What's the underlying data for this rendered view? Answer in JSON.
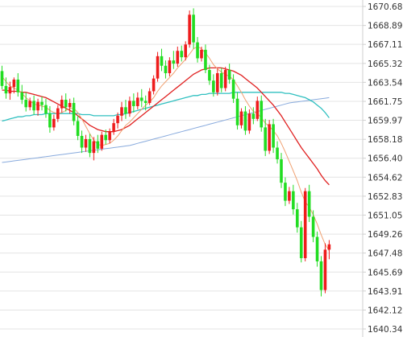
{
  "chart_data": {
    "type": "candlestick",
    "title": "",
    "xlabel": "",
    "ylabel": "",
    "ylim": [
      1640.34,
      1670.68
    ],
    "grid": true,
    "legend": "none",
    "y_ticks": [
      "1670.68",
      "1668.89",
      "1667.11",
      "1665.32",
      "1663.54",
      "1661.75",
      "1659.97",
      "1658.18",
      "1656.40",
      "1654.62",
      "1652.83",
      "1651.05",
      "1649.26",
      "1647.48",
      "1645.69",
      "1643.91",
      "1642.12",
      "1640.34"
    ],
    "colors": {
      "up": "#ee1c1c",
      "down": "#22dd22",
      "ma_fast": "#f0a070",
      "ma_mid": "#e02020",
      "ma_slow": "#30c0c0",
      "ma_long": "#88aadd"
    },
    "ohlc": [
      [
        1664.6,
        1665.1,
        1662.9,
        1663.2
      ],
      [
        1663.2,
        1664.0,
        1662.0,
        1662.5
      ],
      [
        1662.5,
        1663.6,
        1661.9,
        1663.1
      ],
      [
        1663.1,
        1664.0,
        1662.5,
        1663.8
      ],
      [
        1663.8,
        1664.4,
        1662.2,
        1662.6
      ],
      [
        1662.6,
        1663.3,
        1661.5,
        1661.9
      ],
      [
        1661.9,
        1662.6,
        1660.8,
        1661.2
      ],
      [
        1661.2,
        1662.1,
        1660.9,
        1661.8
      ],
      [
        1661.8,
        1662.3,
        1660.5,
        1660.9
      ],
      [
        1660.9,
        1662.0,
        1660.4,
        1661.7
      ],
      [
        1661.7,
        1662.2,
        1660.9,
        1661.4
      ],
      [
        1661.4,
        1662.0,
        1660.2,
        1660.6
      ],
      [
        1660.6,
        1661.3,
        1658.8,
        1659.3
      ],
      [
        1659.3,
        1660.5,
        1659.0,
        1660.1
      ],
      [
        1660.1,
        1661.4,
        1659.8,
        1661.1
      ],
      [
        1661.1,
        1662.3,
        1660.7,
        1661.9
      ],
      [
        1661.9,
        1662.5,
        1660.8,
        1661.2
      ],
      [
        1661.2,
        1662.0,
        1660.6,
        1661.6
      ],
      [
        1661.6,
        1662.1,
        1659.5,
        1659.9
      ],
      [
        1659.9,
        1660.4,
        1658.1,
        1658.5
      ],
      [
        1658.5,
        1659.0,
        1656.9,
        1657.4
      ],
      [
        1657.4,
        1658.6,
        1657.0,
        1658.2
      ],
      [
        1658.2,
        1658.7,
        1656.5,
        1656.9
      ],
      [
        1656.9,
        1658.4,
        1656.2,
        1658.0
      ],
      [
        1658.0,
        1658.6,
        1656.9,
        1657.3
      ],
      [
        1657.3,
        1658.9,
        1657.1,
        1658.6
      ],
      [
        1658.6,
        1659.1,
        1657.7,
        1658.1
      ],
      [
        1658.1,
        1659.2,
        1657.8,
        1658.9
      ],
      [
        1658.9,
        1660.1,
        1658.6,
        1659.7
      ],
      [
        1659.7,
        1660.7,
        1659.2,
        1660.4
      ],
      [
        1660.4,
        1661.7,
        1659.9,
        1661.2
      ],
      [
        1661.2,
        1661.9,
        1660.1,
        1660.6
      ],
      [
        1660.6,
        1662.2,
        1660.3,
        1661.8
      ],
      [
        1661.8,
        1662.5,
        1660.7,
        1661.3
      ],
      [
        1661.3,
        1662.6,
        1661.0,
        1662.1
      ],
      [
        1662.1,
        1662.9,
        1661.2,
        1661.8
      ],
      [
        1661.8,
        1662.3,
        1660.9,
        1661.6
      ],
      [
        1661.6,
        1663.0,
        1661.4,
        1662.7
      ],
      [
        1662.7,
        1664.2,
        1662.4,
        1663.9
      ],
      [
        1663.9,
        1666.4,
        1663.6,
        1666.0
      ],
      [
        1666.0,
        1666.7,
        1664.6,
        1665.1
      ],
      [
        1665.1,
        1665.6,
        1663.9,
        1664.4
      ],
      [
        1664.4,
        1665.9,
        1664.1,
        1665.6
      ],
      [
        1665.6,
        1666.5,
        1664.8,
        1665.3
      ],
      [
        1665.3,
        1666.9,
        1665.0,
        1666.5
      ],
      [
        1666.5,
        1667.0,
        1665.5,
        1665.9
      ],
      [
        1665.9,
        1667.4,
        1665.6,
        1667.1
      ],
      [
        1667.1,
        1670.3,
        1666.8,
        1669.9
      ],
      [
        1669.9,
        1670.5,
        1666.7,
        1667.3
      ],
      [
        1667.3,
        1667.8,
        1665.4,
        1665.8
      ],
      [
        1665.8,
        1666.9,
        1665.5,
        1666.6
      ],
      [
        1666.6,
        1667.1,
        1664.4,
        1664.7
      ],
      [
        1664.7,
        1665.2,
        1663.3,
        1663.7
      ],
      [
        1663.7,
        1664.3,
        1662.2,
        1662.6
      ],
      [
        1662.6,
        1664.8,
        1662.3,
        1664.4
      ],
      [
        1664.4,
        1664.9,
        1662.6,
        1663.0
      ],
      [
        1663.0,
        1665.0,
        1662.7,
        1664.7
      ],
      [
        1664.7,
        1665.3,
        1663.4,
        1663.8
      ],
      [
        1663.8,
        1664.3,
        1661.6,
        1662.0
      ],
      [
        1662.0,
        1662.6,
        1659.1,
        1659.5
      ],
      [
        1659.5,
        1661.1,
        1659.2,
        1660.8
      ],
      [
        1660.8,
        1661.3,
        1658.6,
        1659.0
      ],
      [
        1659.0,
        1661.0,
        1658.7,
        1660.6
      ],
      [
        1660.6,
        1661.2,
        1659.6,
        1660.1
      ],
      [
        1660.1,
        1662.2,
        1659.9,
        1661.8
      ],
      [
        1661.8,
        1662.3,
        1658.9,
        1659.3
      ],
      [
        1659.3,
        1660.1,
        1656.6,
        1657.1
      ],
      [
        1657.1,
        1660.0,
        1656.8,
        1659.6
      ],
      [
        1659.6,
        1660.1,
        1656.9,
        1657.4
      ],
      [
        1657.4,
        1658.0,
        1655.9,
        1656.3
      ],
      [
        1656.3,
        1656.9,
        1653.6,
        1654.1
      ],
      [
        1654.1,
        1654.6,
        1651.9,
        1652.4
      ],
      [
        1652.4,
        1653.7,
        1652.1,
        1653.3
      ],
      [
        1653.3,
        1653.9,
        1651.1,
        1651.6
      ],
      [
        1651.6,
        1652.2,
        1649.4,
        1649.9
      ],
      [
        1649.9,
        1650.5,
        1646.6,
        1647.0
      ],
      [
        1647.0,
        1653.6,
        1646.7,
        1653.3
      ],
      [
        1653.3,
        1653.9,
        1650.4,
        1650.9
      ],
      [
        1650.9,
        1651.5,
        1648.5,
        1649.0
      ],
      [
        1649.0,
        1649.5,
        1646.2,
        1646.7
      ],
      [
        1646.7,
        1647.2,
        1643.4,
        1644.0
      ],
      [
        1644.0,
        1648.4,
        1643.7,
        1647.8
      ],
      [
        1647.8,
        1648.7,
        1646.9,
        1648.3
      ]
    ],
    "ma_fast": [
      1664.1,
      1663.6,
      1663.2,
      1663.0,
      1662.8,
      1662.5,
      1662.1,
      1661.8,
      1661.5,
      1661.4,
      1661.3,
      1661.2,
      1660.9,
      1660.7,
      1660.6,
      1660.7,
      1660.9,
      1661.1,
      1661.1,
      1660.7,
      1660.1,
      1659.4,
      1658.7,
      1658.1,
      1657.7,
      1657.6,
      1657.7,
      1657.8,
      1658.1,
      1658.5,
      1659.0,
      1659.5,
      1659.8,
      1660.2,
      1660.6,
      1661.0,
      1661.4,
      1661.7,
      1662.1,
      1662.7,
      1663.2,
      1663.6,
      1664.0,
      1664.4,
      1664.9,
      1665.3,
      1665.7,
      1666.2,
      1666.7,
      1666.9,
      1666.7,
      1666.3,
      1665.8,
      1665.2,
      1664.8,
      1664.5,
      1664.3,
      1664.1,
      1663.8,
      1663.2,
      1662.6,
      1661.9,
      1661.3,
      1660.8,
      1660.6,
      1660.2,
      1659.7,
      1659.4,
      1659.0,
      1658.5,
      1657.8,
      1657.0,
      1656.1,
      1655.2,
      1654.3,
      1653.2,
      1652.3,
      1651.8,
      1651.1,
      1650.2,
      1649.2,
      1648.3,
      1647.7
    ],
    "ma_mid": [
      1662.8,
      1662.8,
      1662.7,
      1662.7,
      1662.7,
      1662.6,
      1662.6,
      1662.5,
      1662.4,
      1662.3,
      1662.2,
      1662.1,
      1661.9,
      1661.7,
      1661.5,
      1661.3,
      1661.1,
      1660.9,
      1660.7,
      1660.4,
      1660.1,
      1659.8,
      1659.5,
      1659.3,
      1659.1,
      1659.0,
      1658.9,
      1658.9,
      1658.9,
      1659.0,
      1659.1,
      1659.3,
      1659.5,
      1659.8,
      1660.1,
      1660.4,
      1660.7,
      1661.0,
      1661.3,
      1661.6,
      1661.9,
      1662.2,
      1662.5,
      1662.8,
      1663.1,
      1663.4,
      1663.7,
      1664.0,
      1664.3,
      1664.5,
      1664.7,
      1664.8,
      1664.9,
      1664.9,
      1664.9,
      1664.9,
      1664.8,
      1664.7,
      1664.6,
      1664.4,
      1664.2,
      1663.9,
      1663.6,
      1663.3,
      1663.0,
      1662.6,
      1662.2,
      1661.8,
      1661.4,
      1660.9,
      1660.4,
      1659.8,
      1659.2,
      1658.6,
      1658.0,
      1657.4,
      1656.9,
      1656.4,
      1655.9,
      1655.4,
      1654.8,
      1654.3,
      1653.9
    ],
    "ma_slow": [
      1659.9,
      1660.0,
      1660.1,
      1660.2,
      1660.3,
      1660.3,
      1660.4,
      1660.4,
      1660.5,
      1660.5,
      1660.5,
      1660.6,
      1660.6,
      1660.6,
      1660.6,
      1660.6,
      1660.6,
      1660.6,
      1660.6,
      1660.6,
      1660.5,
      1660.5,
      1660.5,
      1660.4,
      1660.4,
      1660.4,
      1660.4,
      1660.4,
      1660.4,
      1660.5,
      1660.5,
      1660.6,
      1660.7,
      1660.8,
      1660.9,
      1661.0,
      1661.1,
      1661.2,
      1661.3,
      1661.4,
      1661.5,
      1661.6,
      1661.7,
      1661.8,
      1661.9,
      1662.0,
      1662.1,
      1662.2,
      1662.3,
      1662.3,
      1662.4,
      1662.4,
      1662.5,
      1662.5,
      1662.5,
      1662.5,
      1662.5,
      1662.5,
      1662.6,
      1662.6,
      1662.6,
      1662.6,
      1662.6,
      1662.6,
      1662.6,
      1662.6,
      1662.6,
      1662.6,
      1662.6,
      1662.6,
      1662.6,
      1662.5,
      1662.5,
      1662.4,
      1662.3,
      1662.2,
      1662.1,
      1661.9,
      1661.7,
      1661.4,
      1661.1,
      1660.7,
      1660.2
    ],
    "ma_long": [
      1656.0,
      1656.05,
      1656.1,
      1656.15,
      1656.2,
      1656.25,
      1656.3,
      1656.35,
      1656.4,
      1656.45,
      1656.5,
      1656.55,
      1656.6,
      1656.65,
      1656.7,
      1656.75,
      1656.8,
      1656.85,
      1656.9,
      1656.95,
      1657.0,
      1657.05,
      1657.1,
      1657.15,
      1657.2,
      1657.25,
      1657.3,
      1657.35,
      1657.4,
      1657.45,
      1657.5,
      1657.55,
      1657.6,
      1657.7,
      1657.8,
      1657.9,
      1658.0,
      1658.1,
      1658.2,
      1658.3,
      1658.4,
      1658.5,
      1658.6,
      1658.7,
      1658.8,
      1658.9,
      1659.0,
      1659.1,
      1659.2,
      1659.3,
      1659.4,
      1659.5,
      1659.6,
      1659.7,
      1659.8,
      1659.9,
      1660.0,
      1660.1,
      1660.2,
      1660.3,
      1660.4,
      1660.5,
      1660.6,
      1660.7,
      1660.8,
      1660.9,
      1661.0,
      1661.1,
      1661.2,
      1661.3,
      1661.4,
      1661.5,
      1661.6,
      1661.65,
      1661.7,
      1661.75,
      1661.8,
      1661.85,
      1661.9,
      1661.95,
      1662.0,
      1662.05,
      1662.1
    ]
  }
}
